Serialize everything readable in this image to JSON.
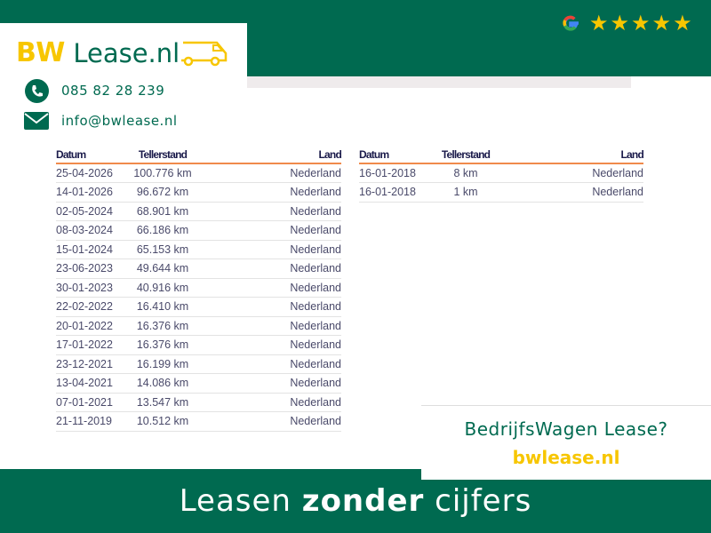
{
  "brand": {
    "logo_bw": "BW",
    "logo_text": "Lease.nl",
    "phone": "085 82 28 239",
    "email": "info@bwlease.nl",
    "green": "#006a50",
    "yellow": "#f7c600"
  },
  "rating": {
    "provider_icon": "google-icon",
    "stars": 5
  },
  "table_left": {
    "headers": [
      "Datum",
      "Tellerstand",
      "Land"
    ],
    "rows": [
      [
        "25-04-2026",
        "100.776 km",
        "Nederland"
      ],
      [
        "14-01-2026",
        "96.672 km",
        "Nederland"
      ],
      [
        "02-05-2024",
        "68.901 km",
        "Nederland"
      ],
      [
        "08-03-2024",
        "66.186 km",
        "Nederland"
      ],
      [
        "15-01-2024",
        "65.153 km",
        "Nederland"
      ],
      [
        "23-06-2023",
        "49.644 km",
        "Nederland"
      ],
      [
        "30-01-2023",
        "40.916 km",
        "Nederland"
      ],
      [
        "22-02-2022",
        "16.410 km",
        "Nederland"
      ],
      [
        "20-01-2022",
        "16.376 km",
        "Nederland"
      ],
      [
        "17-01-2022",
        "16.376 km",
        "Nederland"
      ],
      [
        "23-12-2021",
        "16.199 km",
        "Nederland"
      ],
      [
        "13-04-2021",
        "14.086 km",
        "Nederland"
      ],
      [
        "07-01-2021",
        "13.547 km",
        "Nederland"
      ],
      [
        "21-11-2019",
        "10.512 km",
        "Nederland"
      ]
    ]
  },
  "table_right": {
    "headers": [
      "Datum",
      "Tellerstand",
      "Land"
    ],
    "rows": [
      [
        "16-01-2018",
        "8 km",
        "Nederland"
      ],
      [
        "16-01-2018",
        "1 km",
        "Nederland"
      ]
    ]
  },
  "cta": {
    "question": "BedrijfsWagen Lease?",
    "url": "bwlease.nl"
  },
  "footer": {
    "pre": "Leasen ",
    "bold": "zonder",
    "post": " cijfers"
  }
}
